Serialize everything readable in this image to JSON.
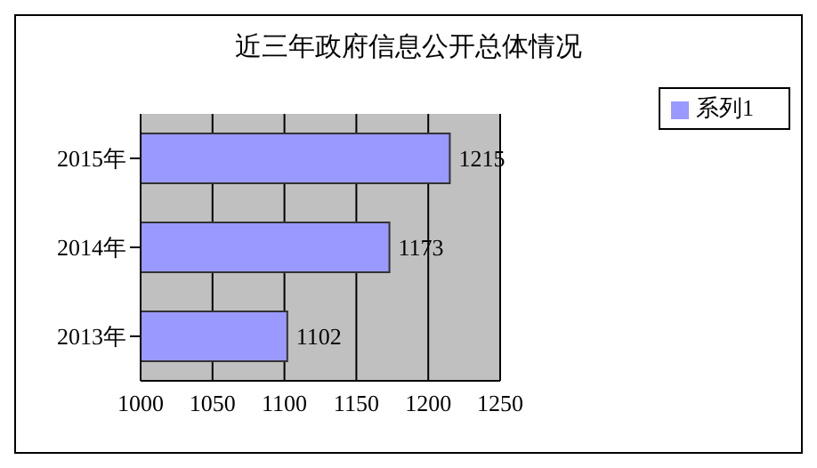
{
  "chart_data": {
    "type": "bar",
    "orientation": "horizontal",
    "title": "近三年政府信息公开总体情况",
    "categories": [
      "2015年",
      "2014年",
      "2013年"
    ],
    "series": [
      {
        "name": "系列1",
        "color": "#9999ff",
        "values": [
          1215,
          1173,
          1102
        ]
      }
    ],
    "xlim": [
      1000,
      1250
    ],
    "xticks": [
      1000,
      1050,
      1100,
      1150,
      1200,
      1250
    ],
    "grid": "x",
    "legend": "top right",
    "data_labels": true
  }
}
